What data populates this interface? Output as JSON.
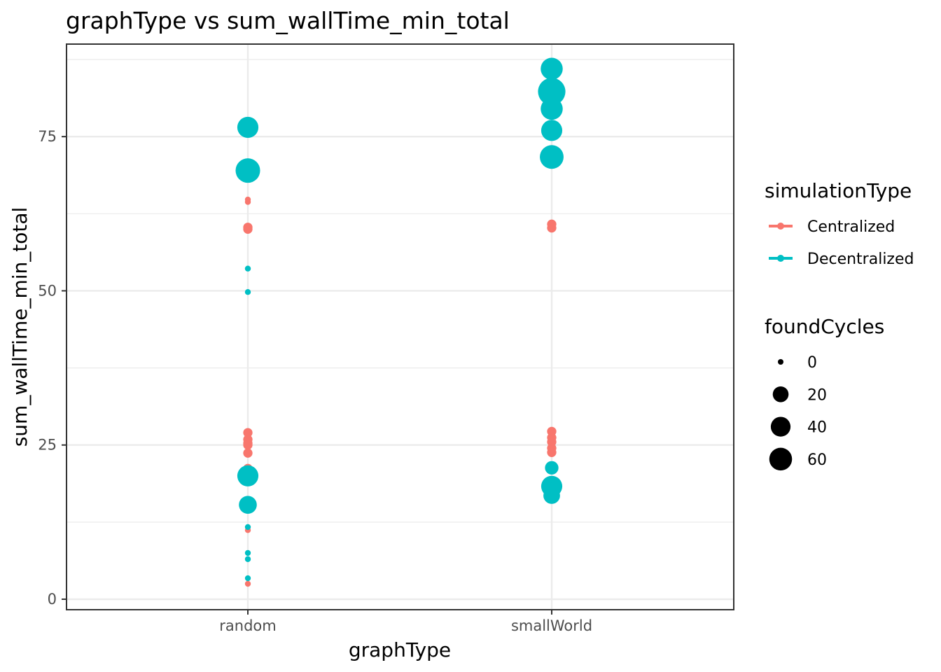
{
  "chart_data": {
    "type": "scatter",
    "title": "graphType  vs  sum_wallTime_min_total",
    "xlabel": "graphType",
    "ylabel": "sum_wallTime_min_total",
    "categories": [
      "random",
      "smallWorld"
    ],
    "ylim": [
      -1.7,
      90
    ],
    "yticks": [
      0,
      25,
      50,
      75
    ],
    "grid": true,
    "legend_position": "right",
    "color_legend": {
      "title": "simulationType",
      "entries": [
        {
          "label": "Centralized",
          "color": "#F8766D"
        },
        {
          "label": "Decentralized",
          "color": "#00BFC4"
        }
      ]
    },
    "size_legend": {
      "title": "foundCycles",
      "entries": [
        {
          "label": "0",
          "value": 0
        },
        {
          "label": "20",
          "value": 20
        },
        {
          "label": "40",
          "value": 40
        },
        {
          "label": "60",
          "value": 60
        }
      ]
    },
    "series": [
      {
        "name": "Centralized",
        "color": "#F8766D",
        "points": [
          {
            "x": "random",
            "y": 64.8,
            "size": 0
          },
          {
            "x": "random",
            "y": 64.4,
            "size": 0
          },
          {
            "x": "random",
            "y": 60.3,
            "size": 2
          },
          {
            "x": "random",
            "y": 60.0,
            "size": 2
          },
          {
            "x": "random",
            "y": 27.0,
            "size": 2
          },
          {
            "x": "random",
            "y": 25.9,
            "size": 2
          },
          {
            "x": "random",
            "y": 25.3,
            "size": 2
          },
          {
            "x": "random",
            "y": 25.0,
            "size": 2
          },
          {
            "x": "random",
            "y": 23.7,
            "size": 2
          },
          {
            "x": "random",
            "y": 21.2,
            "size": 2
          },
          {
            "x": "random",
            "y": 20.8,
            "size": 0
          },
          {
            "x": "random",
            "y": 11.2,
            "size": 0
          },
          {
            "x": "random",
            "y": 2.5,
            "size": 0
          },
          {
            "x": "smallWorld",
            "y": 60.8,
            "size": 2
          },
          {
            "x": "smallWorld",
            "y": 60.2,
            "size": 2
          },
          {
            "x": "smallWorld",
            "y": 27.2,
            "size": 2
          },
          {
            "x": "smallWorld",
            "y": 26.2,
            "size": 2
          },
          {
            "x": "smallWorld",
            "y": 25.5,
            "size": 2
          },
          {
            "x": "smallWorld",
            "y": 24.5,
            "size": 2
          },
          {
            "x": "smallWorld",
            "y": 23.8,
            "size": 2
          }
        ]
      },
      {
        "name": "Decentralized",
        "color": "#00BFC4",
        "points": [
          {
            "x": "random",
            "y": 76.5,
            "size": 40
          },
          {
            "x": "random",
            "y": 69.5,
            "size": 60
          },
          {
            "x": "random",
            "y": 53.6,
            "size": 0
          },
          {
            "x": "random",
            "y": 49.8,
            "size": 0
          },
          {
            "x": "random",
            "y": 20.0,
            "size": 40
          },
          {
            "x": "random",
            "y": 15.3,
            "size": 25
          },
          {
            "x": "random",
            "y": 11.7,
            "size": 0
          },
          {
            "x": "random",
            "y": 7.5,
            "size": 0
          },
          {
            "x": "random",
            "y": 6.5,
            "size": 0
          },
          {
            "x": "random",
            "y": 3.4,
            "size": 0
          },
          {
            "x": "smallWorld",
            "y": 86.0,
            "size": 45
          },
          {
            "x": "smallWorld",
            "y": 82.3,
            "size": 80
          },
          {
            "x": "smallWorld",
            "y": 79.5,
            "size": 45
          },
          {
            "x": "smallWorld",
            "y": 76.0,
            "size": 40
          },
          {
            "x": "smallWorld",
            "y": 71.7,
            "size": 55
          },
          {
            "x": "smallWorld",
            "y": 21.3,
            "size": 10
          },
          {
            "x": "smallWorld",
            "y": 18.3,
            "size": 40
          },
          {
            "x": "smallWorld",
            "y": 17.5,
            "size": 20
          },
          {
            "x": "smallWorld",
            "y": 16.8,
            "size": 20
          }
        ]
      }
    ]
  }
}
